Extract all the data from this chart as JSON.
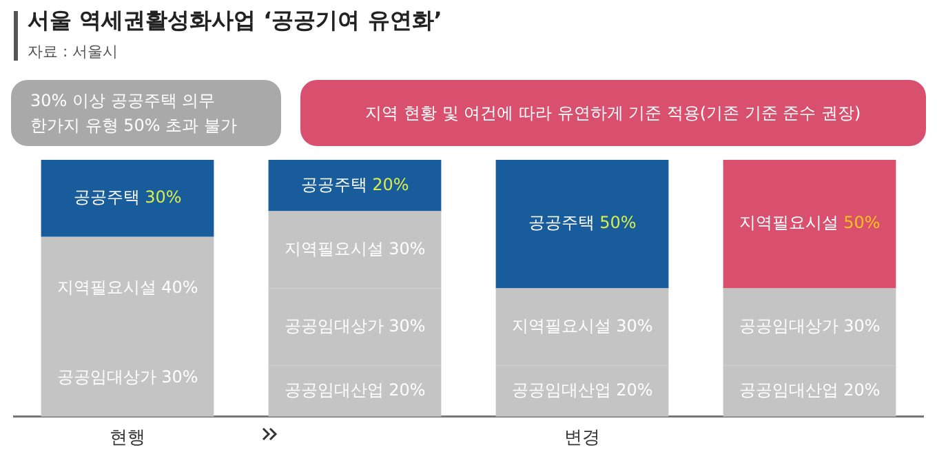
{
  "chart_data": {
    "type": "bar",
    "title": "서울 역세권활성화사업 ‘공공기여 유연화’",
    "subtitle": "자료 : 서울시",
    "annotations": [
      "30% 이상 공공주택 의무\n한가지 유형 50% 초과 불가",
      "지역 현황 및 여건에 따라 유연하게 기준 적용(기존 기준 준수 권장)"
    ],
    "categories": [
      "현행",
      null,
      "변경",
      null
    ],
    "stacked": true,
    "series": [
      {
        "name": "공공임대산업",
        "color": "#c4c4c4",
        "values": [
          null,
          20,
          20,
          20
        ],
        "value_labels": [
          null,
          "20%",
          "20%",
          "20%"
        ]
      },
      {
        "name": "공공임대상가",
        "color": "#c4c4c4",
        "values": [
          30,
          30,
          null,
          30
        ],
        "value_labels": [
          "30%",
          "30%",
          null,
          "30%"
        ]
      },
      {
        "name": "지역필요시설",
        "colors": [
          "#c4c4c4",
          "#c4c4c4",
          "#c4c4c4",
          "#d9506f"
        ],
        "values": [
          40,
          30,
          30,
          50
        ],
        "value_labels": [
          "40%",
          "30%",
          "30%",
          "50%"
        ]
      },
      {
        "name": "공공주택",
        "color": "#195c9c",
        "values": [
          30,
          20,
          50,
          null
        ],
        "value_labels": [
          "30%",
          "20%",
          "50%",
          null
        ]
      }
    ],
    "legend": false,
    "grid": false
  }
}
